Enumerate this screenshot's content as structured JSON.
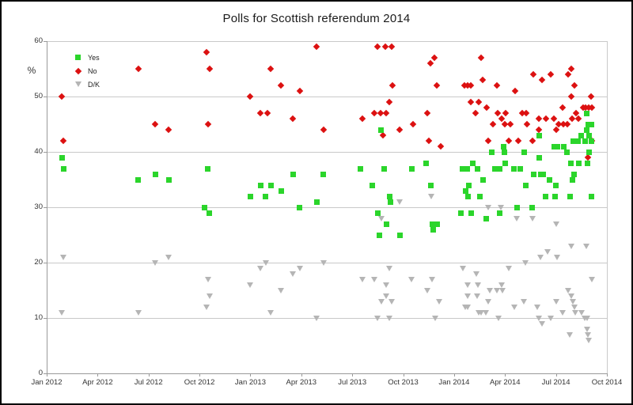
{
  "page": {
    "title": "Polls for Scottish referendum 2014"
  },
  "colors": {
    "yes": "#2bd52b",
    "no": "#dc1111",
    "dk": "#b5b5b5",
    "grid": "#c9c9c9",
    "axis": "#9a9a9a",
    "text": "#333333",
    "title": "#1a1a1a",
    "background": "#ffffff",
    "frame": "#000000"
  },
  "chart_data": {
    "type": "scatter",
    "title": "Polls for Scottish referendum 2014",
    "xlabel": "",
    "ylabel": "%",
    "x_unit": "months since Jan 2012",
    "xlim": [
      0,
      33
    ],
    "ylim": [
      0,
      60
    ],
    "grid": "horizontal",
    "legend_position": "top-left-inside",
    "x_ticks": [
      {
        "pos": 0,
        "label": "Jan 2012"
      },
      {
        "pos": 3,
        "label": "Apr 2012"
      },
      {
        "pos": 6,
        "label": "Jul 2012"
      },
      {
        "pos": 9,
        "label": "Oct 2012"
      },
      {
        "pos": 12,
        "label": "Jan 2013"
      },
      {
        "pos": 15,
        "label": "Apr 2013"
      },
      {
        "pos": 18,
        "label": "Jul 2013"
      },
      {
        "pos": 21,
        "label": "Oct 2013"
      },
      {
        "pos": 24,
        "label": "Jan 2014"
      },
      {
        "pos": 27,
        "label": "Apr 2014"
      },
      {
        "pos": 30,
        "label": "Jul 2014"
      },
      {
        "pos": 33,
        "label": "Oct 2014"
      }
    ],
    "y_ticks": [
      {
        "pos": 0,
        "label": "0"
      },
      {
        "pos": 10,
        "label": "10"
      },
      {
        "pos": 20,
        "label": "20"
      },
      {
        "pos": 30,
        "label": "30"
      },
      {
        "pos": 40,
        "label": "40"
      },
      {
        "pos": 50,
        "label": "50"
      },
      {
        "pos": 60,
        "label": "60"
      }
    ],
    "series": [
      {
        "name": "Yes",
        "marker": "square",
        "color": "#2bd52b",
        "points": [
          [
            0.9,
            39
          ],
          [
            1.0,
            37
          ],
          [
            5.4,
            35
          ],
          [
            6.4,
            36
          ],
          [
            7.2,
            35
          ],
          [
            9.3,
            30
          ],
          [
            9.5,
            37
          ],
          [
            9.6,
            29
          ],
          [
            12.0,
            32
          ],
          [
            12.6,
            34
          ],
          [
            12.9,
            32
          ],
          [
            13.2,
            34
          ],
          [
            13.8,
            33
          ],
          [
            14.5,
            36
          ],
          [
            14.9,
            30
          ],
          [
            15.9,
            31
          ],
          [
            16.3,
            36
          ],
          [
            18.5,
            37
          ],
          [
            19.2,
            34
          ],
          [
            19.5,
            29
          ],
          [
            19.6,
            25
          ],
          [
            19.7,
            44
          ],
          [
            19.9,
            37
          ],
          [
            20.0,
            27
          ],
          [
            20.2,
            32
          ],
          [
            20.25,
            31
          ],
          [
            20.8,
            25
          ],
          [
            21.5,
            37
          ],
          [
            22.35,
            38
          ],
          [
            22.65,
            34
          ],
          [
            22.7,
            27
          ],
          [
            22.75,
            26
          ],
          [
            23.0,
            27
          ],
          [
            24.4,
            29
          ],
          [
            24.5,
            37
          ],
          [
            24.7,
            33
          ],
          [
            24.75,
            37
          ],
          [
            24.8,
            32
          ],
          [
            24.85,
            34
          ],
          [
            25.0,
            29
          ],
          [
            25.1,
            38
          ],
          [
            25.4,
            37
          ],
          [
            25.5,
            32
          ],
          [
            25.7,
            35
          ],
          [
            25.9,
            28
          ],
          [
            26.2,
            40
          ],
          [
            26.4,
            37
          ],
          [
            26.7,
            37
          ],
          [
            26.7,
            29
          ],
          [
            26.9,
            41
          ],
          [
            26.95,
            40
          ],
          [
            27.0,
            38
          ],
          [
            27.5,
            37
          ],
          [
            27.7,
            30
          ],
          [
            27.9,
            37
          ],
          [
            28.15,
            40
          ],
          [
            28.2,
            34
          ],
          [
            28.6,
            30
          ],
          [
            28.7,
            36
          ],
          [
            29.0,
            43
          ],
          [
            29.0,
            39
          ],
          [
            29.1,
            36
          ],
          [
            29.25,
            36
          ],
          [
            29.4,
            32
          ],
          [
            29.6,
            35
          ],
          [
            29.9,
            41
          ],
          [
            29.95,
            32
          ],
          [
            30.0,
            34
          ],
          [
            30.1,
            41
          ],
          [
            30.45,
            41
          ],
          [
            30.65,
            40
          ],
          [
            30.85,
            32
          ],
          [
            30.9,
            38
          ],
          [
            30.95,
            35
          ],
          [
            31.0,
            42
          ],
          [
            31.05,
            36
          ],
          [
            31.3,
            42
          ],
          [
            31.35,
            38
          ],
          [
            31.5,
            43
          ],
          [
            31.7,
            42
          ],
          [
            31.8,
            47
          ],
          [
            31.8,
            44
          ],
          [
            31.85,
            38
          ],
          [
            31.9,
            45
          ],
          [
            31.95,
            43
          ],
          [
            31.95,
            40
          ],
          [
            32.1,
            45
          ],
          [
            32.1,
            42
          ],
          [
            32.1,
            32
          ]
        ]
      },
      {
        "name": "No",
        "marker": "diamond",
        "color": "#dc1111",
        "points": [
          [
            0.9,
            50
          ],
          [
            1.0,
            42
          ],
          [
            5.4,
            55
          ],
          [
            6.4,
            45
          ],
          [
            7.2,
            44
          ],
          [
            9.4,
            58
          ],
          [
            9.5,
            45
          ],
          [
            9.6,
            55
          ],
          [
            12.0,
            50
          ],
          [
            12.6,
            47
          ],
          [
            13.0,
            47
          ],
          [
            13.2,
            55
          ],
          [
            13.8,
            52
          ],
          [
            14.5,
            46
          ],
          [
            14.9,
            51
          ],
          [
            15.9,
            59
          ],
          [
            16.3,
            44
          ],
          [
            18.6,
            46
          ],
          [
            19.3,
            47
          ],
          [
            19.5,
            59
          ],
          [
            19.65,
            47
          ],
          [
            19.8,
            43
          ],
          [
            19.95,
            59
          ],
          [
            20.0,
            47
          ],
          [
            20.2,
            49
          ],
          [
            20.3,
            59
          ],
          [
            20.35,
            52
          ],
          [
            20.8,
            44
          ],
          [
            21.6,
            45
          ],
          [
            22.4,
            47
          ],
          [
            22.5,
            42
          ],
          [
            22.6,
            56
          ],
          [
            22.85,
            57
          ],
          [
            23.0,
            52
          ],
          [
            23.2,
            41
          ],
          [
            24.6,
            52
          ],
          [
            24.8,
            52
          ],
          [
            25.0,
            52
          ],
          [
            25.0,
            49
          ],
          [
            25.25,
            47
          ],
          [
            25.45,
            49
          ],
          [
            25.6,
            57
          ],
          [
            25.7,
            53
          ],
          [
            25.9,
            48
          ],
          [
            26.0,
            42
          ],
          [
            26.3,
            45
          ],
          [
            26.5,
            52
          ],
          [
            26.55,
            47
          ],
          [
            26.8,
            46
          ],
          [
            27.0,
            45
          ],
          [
            27.05,
            47
          ],
          [
            27.2,
            42
          ],
          [
            27.3,
            45
          ],
          [
            27.6,
            51
          ],
          [
            27.8,
            42
          ],
          [
            28.0,
            47
          ],
          [
            28.25,
            47
          ],
          [
            28.3,
            45
          ],
          [
            28.6,
            42
          ],
          [
            28.65,
            54
          ],
          [
            29.0,
            46
          ],
          [
            29.0,
            44
          ],
          [
            29.2,
            53
          ],
          [
            29.4,
            46
          ],
          [
            29.7,
            54
          ],
          [
            29.9,
            46
          ],
          [
            30.0,
            44
          ],
          [
            30.15,
            45
          ],
          [
            30.4,
            48
          ],
          [
            30.45,
            45
          ],
          [
            30.65,
            45
          ],
          [
            30.7,
            54
          ],
          [
            30.9,
            55
          ],
          [
            30.9,
            50
          ],
          [
            30.95,
            46
          ],
          [
            31.1,
            52
          ],
          [
            31.2,
            47
          ],
          [
            31.3,
            46
          ],
          [
            31.6,
            48
          ],
          [
            31.75,
            48
          ],
          [
            31.9,
            39
          ],
          [
            31.95,
            48
          ],
          [
            32.05,
            50
          ],
          [
            32.1,
            48
          ],
          [
            32.1,
            42
          ]
        ]
      },
      {
        "name": "D/K",
        "marker": "triangle-down",
        "color": "#b5b5b5",
        "points": [
          [
            0.9,
            11
          ],
          [
            1.0,
            21
          ],
          [
            5.4,
            11
          ],
          [
            6.4,
            20
          ],
          [
            7.2,
            21
          ],
          [
            9.4,
            12
          ],
          [
            9.5,
            17
          ],
          [
            9.6,
            14
          ],
          [
            12.0,
            16
          ],
          [
            12.6,
            19
          ],
          [
            12.9,
            20
          ],
          [
            13.2,
            11
          ],
          [
            13.8,
            15
          ],
          [
            14.5,
            18
          ],
          [
            14.9,
            19
          ],
          [
            15.9,
            10
          ],
          [
            16.3,
            20
          ],
          [
            18.6,
            17
          ],
          [
            19.3,
            17
          ],
          [
            19.5,
            10
          ],
          [
            19.7,
            28
          ],
          [
            19.7,
            13
          ],
          [
            20.0,
            16
          ],
          [
            20.0,
            14
          ],
          [
            20.2,
            19
          ],
          [
            20.2,
            10
          ],
          [
            20.3,
            13
          ],
          [
            20.8,
            31
          ],
          [
            21.5,
            17
          ],
          [
            22.4,
            15
          ],
          [
            22.65,
            32
          ],
          [
            22.7,
            17
          ],
          [
            22.9,
            10
          ],
          [
            23.1,
            13
          ],
          [
            24.5,
            19
          ],
          [
            24.65,
            12
          ],
          [
            24.8,
            16
          ],
          [
            24.8,
            14
          ],
          [
            24.8,
            12
          ],
          [
            25.3,
            18
          ],
          [
            25.35,
            14
          ],
          [
            25.4,
            16
          ],
          [
            25.45,
            11
          ],
          [
            25.6,
            11
          ],
          [
            25.85,
            11
          ],
          [
            26.0,
            30
          ],
          [
            26.0,
            13
          ],
          [
            26.1,
            15
          ],
          [
            26.5,
            15
          ],
          [
            26.6,
            10
          ],
          [
            26.75,
            30
          ],
          [
            26.8,
            16
          ],
          [
            26.85,
            15
          ],
          [
            27.2,
            19
          ],
          [
            27.55,
            12
          ],
          [
            27.7,
            28
          ],
          [
            28.1,
            13
          ],
          [
            28.2,
            20
          ],
          [
            28.6,
            28
          ],
          [
            28.9,
            12
          ],
          [
            29.0,
            10
          ],
          [
            29.1,
            21
          ],
          [
            29.2,
            9
          ],
          [
            29.5,
            22
          ],
          [
            29.7,
            10
          ],
          [
            30.0,
            27
          ],
          [
            30.0,
            13
          ],
          [
            30.05,
            21
          ],
          [
            30.4,
            11
          ],
          [
            30.7,
            15
          ],
          [
            30.8,
            7
          ],
          [
            30.9,
            23
          ],
          [
            30.9,
            14
          ],
          [
            31.0,
            13
          ],
          [
            31.1,
            12
          ],
          [
            31.15,
            11
          ],
          [
            31.5,
            11
          ],
          [
            31.7,
            10
          ],
          [
            31.8,
            23
          ],
          [
            31.85,
            10
          ],
          [
            31.85,
            8
          ],
          [
            31.9,
            7
          ],
          [
            31.95,
            6
          ],
          [
            32.1,
            17
          ]
        ]
      }
    ]
  }
}
